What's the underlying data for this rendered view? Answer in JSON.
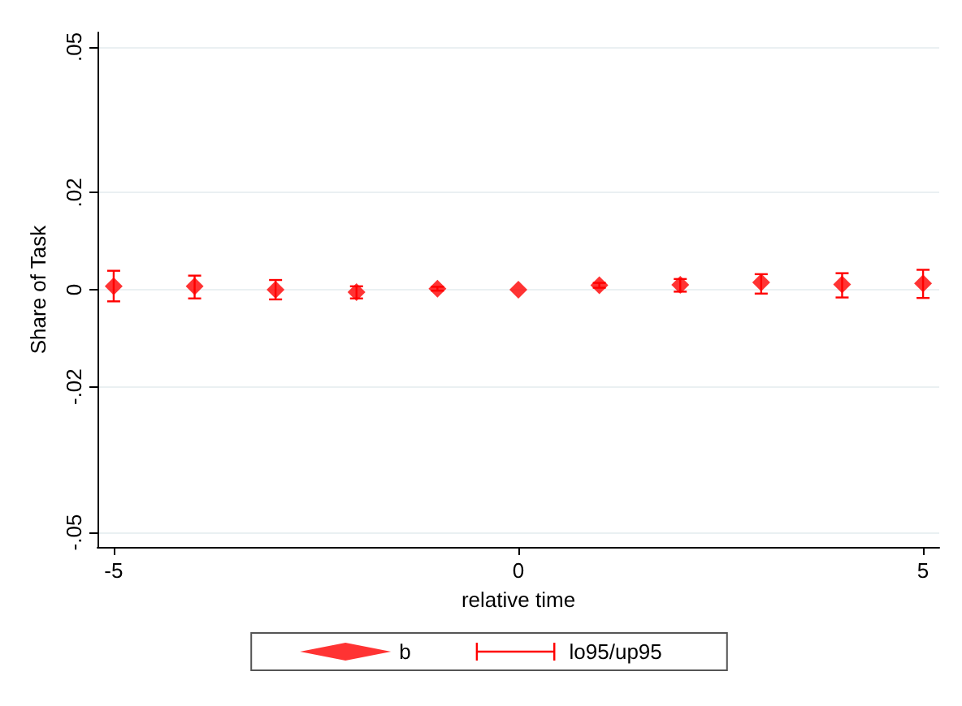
{
  "chart_data": {
    "type": "scatter",
    "xlabel": "relative time",
    "ylabel": "Share of Task",
    "x": [
      -5,
      -4,
      -3,
      -2,
      -1,
      0,
      1,
      2,
      3,
      4,
      5
    ],
    "series": [
      {
        "name": "b",
        "color": "#ff0000",
        "values": [
          0.0007,
          0.0007,
          0.0,
          -0.0005,
          0.0002,
          0.0,
          0.0009,
          0.001,
          0.0015,
          0.0011,
          0.0013
        ],
        "errors": [
          [
            -0.0024,
            0.0039
          ],
          [
            -0.0018,
            0.0029
          ],
          [
            -0.002,
            0.002
          ],
          [
            -0.0018,
            0.0007
          ],
          [
            -0.0002,
            0.0006
          ],
          null,
          [
            0.0004,
            0.0014
          ],
          [
            -0.0004,
            0.0022
          ],
          [
            -0.0008,
            0.0032
          ],
          [
            -0.0016,
            0.0034
          ],
          [
            -0.0017,
            0.0041
          ]
        ]
      }
    ],
    "annotations": [
      "lo95/up95"
    ],
    "xlim": [
      -5.2,
      5.2
    ],
    "xticks": [
      -5,
      0,
      5
    ],
    "ylim": [
      -0.053,
      0.053
    ],
    "yticks": [
      {
        "value": -0.05,
        "label": "-.05"
      },
      {
        "value": -0.02,
        "label": "-.02"
      },
      {
        "value": 0,
        "label": "0"
      },
      {
        "value": 0.02,
        "label": ".02"
      },
      {
        "value": 0.05,
        "label": ".05"
      }
    ],
    "grid": "y",
    "legend": "bottom",
    "marker": "diamond"
  }
}
